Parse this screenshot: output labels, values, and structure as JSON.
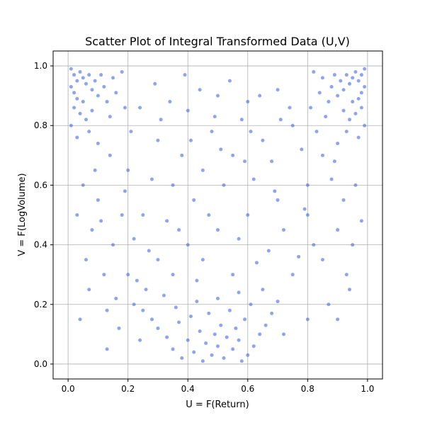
{
  "chart_data": {
    "type": "scatter",
    "title": "Scatter Plot of Integral Transformed Data (U,V)",
    "xlabel": "U = F(Return)",
    "ylabel": "V = F(LogVolume)",
    "xlim": [
      -0.05,
      1.05
    ],
    "ylim": [
      -0.05,
      1.05
    ],
    "xticks": [
      "0.0",
      "0.2",
      "0.4",
      "0.6",
      "0.8",
      "1.0"
    ],
    "yticks": [
      "0.0",
      "0.2",
      "0.4",
      "0.6",
      "0.8",
      "1.0"
    ],
    "grid": true,
    "legend": "none",
    "marker_color": "#4169e1",
    "series": [
      {
        "points": [
          [
            0.01,
            0.99
          ],
          [
            0.02,
            0.97
          ],
          [
            0.03,
            0.95
          ],
          [
            0.01,
            0.93
          ],
          [
            0.04,
            0.98
          ],
          [
            0.02,
            0.91
          ],
          [
            0.05,
            0.96
          ],
          [
            0.06,
            0.94
          ],
          [
            0.03,
            0.89
          ],
          [
            0.07,
            0.97
          ],
          [
            0.08,
            0.92
          ],
          [
            0.02,
            0.86
          ],
          [
            0.05,
            0.88
          ],
          [
            0.09,
            0.95
          ],
          [
            0.1,
            0.9
          ],
          [
            0.04,
            0.84
          ],
          [
            0.11,
            0.97
          ],
          [
            0.06,
            0.82
          ],
          [
            0.12,
            0.93
          ],
          [
            0.01,
            0.8
          ],
          [
            0.13,
            0.88
          ],
          [
            0.08,
            0.85
          ],
          [
            0.15,
            0.96
          ],
          [
            0.03,
            0.76
          ],
          [
            0.16,
            0.91
          ],
          [
            0.14,
            0.83
          ],
          [
            0.18,
            0.98
          ],
          [
            0.07,
            0.78
          ],
          [
            0.19,
            0.86
          ],
          [
            0.1,
            0.74
          ],
          [
            0.99,
            0.99
          ],
          [
            0.98,
            0.97
          ],
          [
            0.97,
            0.95
          ],
          [
            0.99,
            0.93
          ],
          [
            0.96,
            0.98
          ],
          [
            0.98,
            0.91
          ],
          [
            0.95,
            0.96
          ],
          [
            0.94,
            0.94
          ],
          [
            0.97,
            0.89
          ],
          [
            0.93,
            0.97
          ],
          [
            0.92,
            0.92
          ],
          [
            0.98,
            0.86
          ],
          [
            0.95,
            0.88
          ],
          [
            0.91,
            0.95
          ],
          [
            0.9,
            0.9
          ],
          [
            0.96,
            0.84
          ],
          [
            0.89,
            0.97
          ],
          [
            0.94,
            0.82
          ],
          [
            0.88,
            0.93
          ],
          [
            0.99,
            0.8
          ],
          [
            0.87,
            0.88
          ],
          [
            0.92,
            0.85
          ],
          [
            0.85,
            0.96
          ],
          [
            0.97,
            0.76
          ],
          [
            0.84,
            0.91
          ],
          [
            0.86,
            0.83
          ],
          [
            0.82,
            0.98
          ],
          [
            0.93,
            0.78
          ],
          [
            0.81,
            0.86
          ],
          [
            0.9,
            0.74
          ],
          [
            0.38,
            0.02
          ],
          [
            0.42,
            0.04
          ],
          [
            0.45,
            0.01
          ],
          [
            0.48,
            0.03
          ],
          [
            0.5,
            0.06
          ],
          [
            0.52,
            0.02
          ],
          [
            0.55,
            0.05
          ],
          [
            0.58,
            0.01
          ],
          [
            0.6,
            0.03
          ],
          [
            0.35,
            0.05
          ],
          [
            0.4,
            0.08
          ],
          [
            0.46,
            0.07
          ],
          [
            0.53,
            0.09
          ],
          [
            0.57,
            0.08
          ],
          [
            0.62,
            0.06
          ],
          [
            0.33,
            0.09
          ],
          [
            0.44,
            0.11
          ],
          [
            0.49,
            0.1
          ],
          [
            0.51,
            0.13
          ],
          [
            0.56,
            0.12
          ],
          [
            0.3,
            0.12
          ],
          [
            0.37,
            0.14
          ],
          [
            0.64,
            0.1
          ],
          [
            0.41,
            0.16
          ],
          [
            0.59,
            0.15
          ],
          [
            0.28,
            0.15
          ],
          [
            0.47,
            0.17
          ],
          [
            0.54,
            0.18
          ],
          [
            0.66,
            0.13
          ],
          [
            0.25,
            0.18
          ],
          [
            0.36,
            0.19
          ],
          [
            0.43,
            0.21
          ],
          [
            0.61,
            0.2
          ],
          [
            0.68,
            0.17
          ],
          [
            0.22,
            0.2
          ],
          [
            0.5,
            0.22
          ],
          [
            0.32,
            0.23
          ],
          [
            0.57,
            0.24
          ],
          [
            0.7,
            0.21
          ],
          [
            0.26,
            0.25
          ],
          [
            0.2,
            0.3
          ],
          [
            0.3,
            0.35
          ],
          [
            0.4,
            0.4
          ],
          [
            0.5,
            0.45
          ],
          [
            0.6,
            0.5
          ],
          [
            0.7,
            0.55
          ],
          [
            0.8,
            0.6
          ],
          [
            0.15,
            0.4
          ],
          [
            0.25,
            0.5
          ],
          [
            0.35,
            0.6
          ],
          [
            0.45,
            0.65
          ],
          [
            0.55,
            0.7
          ],
          [
            0.65,
            0.75
          ],
          [
            0.75,
            0.8
          ],
          [
            0.85,
            0.7
          ],
          [
            0.1,
            0.55
          ],
          [
            0.2,
            0.65
          ],
          [
            0.3,
            0.75
          ],
          [
            0.4,
            0.85
          ],
          [
            0.5,
            0.9
          ],
          [
            0.6,
            0.88
          ],
          [
            0.7,
            0.92
          ],
          [
            0.8,
            0.5
          ],
          [
            0.9,
            0.45
          ],
          [
            0.85,
            0.35
          ],
          [
            0.75,
            0.3
          ],
          [
            0.65,
            0.25
          ],
          [
            0.55,
            0.3
          ],
          [
            0.45,
            0.35
          ],
          [
            0.35,
            0.3
          ],
          [
            0.12,
            0.3
          ],
          [
            0.08,
            0.45
          ],
          [
            0.05,
            0.6
          ],
          [
            0.18,
            0.5
          ],
          [
            0.28,
            0.62
          ],
          [
            0.38,
            0.7
          ],
          [
            0.48,
            0.78
          ],
          [
            0.58,
            0.82
          ],
          [
            0.68,
            0.68
          ],
          [
            0.78,
            0.72
          ],
          [
            0.88,
            0.62
          ],
          [
            0.92,
            0.55
          ],
          [
            0.95,
            0.4
          ],
          [
            0.93,
            0.3
          ],
          [
            0.87,
            0.2
          ],
          [
            0.8,
            0.15
          ],
          [
            0.72,
            0.1
          ],
          [
            0.24,
            0.08
          ],
          [
            0.17,
            0.12
          ],
          [
            0.13,
            0.05
          ],
          [
            0.22,
            0.42
          ],
          [
            0.33,
            0.48
          ],
          [
            0.42,
            0.55
          ],
          [
            0.52,
            0.6
          ],
          [
            0.62,
            0.62
          ],
          [
            0.72,
            0.45
          ],
          [
            0.82,
            0.4
          ],
          [
            0.27,
            0.38
          ],
          [
            0.37,
            0.45
          ],
          [
            0.47,
            0.5
          ],
          [
            0.57,
            0.42
          ],
          [
            0.67,
            0.38
          ],
          [
            0.77,
            0.36
          ],
          [
            0.16,
            0.22
          ],
          [
            0.06,
            0.35
          ],
          [
            0.03,
            0.5
          ],
          [
            0.09,
            0.65
          ],
          [
            0.14,
            0.7
          ],
          [
            0.21,
            0.78
          ],
          [
            0.31,
            0.82
          ],
          [
            0.41,
            0.75
          ],
          [
            0.51,
            0.72
          ],
          [
            0.61,
            0.78
          ],
          [
            0.71,
            0.82
          ],
          [
            0.83,
            0.78
          ],
          [
            0.89,
            0.68
          ],
          [
            0.96,
            0.6
          ],
          [
            0.98,
            0.48
          ],
          [
            0.94,
            0.25
          ],
          [
            0.9,
            0.15
          ],
          [
            0.34,
            0.88
          ],
          [
            0.44,
            0.92
          ],
          [
            0.54,
            0.95
          ],
          [
            0.64,
            0.9
          ],
          [
            0.74,
            0.86
          ],
          [
            0.24,
            0.86
          ],
          [
            0.29,
            0.94
          ],
          [
            0.39,
            0.97
          ],
          [
            0.49,
            0.83
          ],
          [
            0.59,
            0.68
          ],
          [
            0.69,
            0.58
          ],
          [
            0.79,
            0.52
          ],
          [
            0.19,
            0.58
          ],
          [
            0.11,
            0.48
          ],
          [
            0.07,
            0.25
          ],
          [
            0.04,
            0.15
          ],
          [
            0.13,
            0.18
          ],
          [
            0.23,
            0.28
          ],
          [
            0.43,
            0.28
          ],
          [
            0.63,
            0.34
          ]
        ]
      }
    ]
  }
}
